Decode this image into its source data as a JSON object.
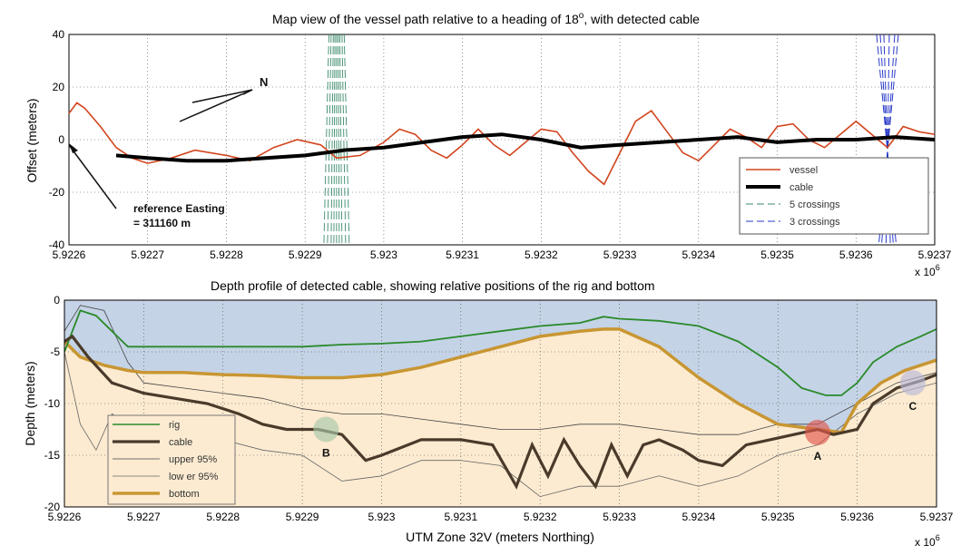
{
  "chart_data": [
    {
      "type": "line",
      "title": "Map view of the vessel path relative to a heading of 18°, with detected cable",
      "title_main": "Map view of the vessel path relative to a heading of 18",
      "title_deg": "o",
      "title_tail": ", with detected cable",
      "ylabel": "Offset (meters)",
      "xlim": [
        5.9226,
        5.9237
      ],
      "ylim": [
        -40,
        40
      ],
      "x_ticks": [
        "5.9226",
        "5.9227",
        "5.9228",
        "5.9229",
        "5.923",
        "5.9231",
        "5.9232",
        "5.9233",
        "5.9234",
        "5.9235",
        "5.9236",
        "5.9237"
      ],
      "y_ticks": [
        "40",
        "20",
        "0",
        "-20",
        "-40"
      ],
      "x_exponent_label": "x 10",
      "x_exponent": "6",
      "grid": true,
      "legend": {
        "placement": "bottom-right",
        "entries": [
          "vessel",
          "cable",
          "5 crossings",
          "3 crossings"
        ]
      },
      "annotations": {
        "north": "N",
        "ref_line1": "reference Easting",
        "ref_line2": "= 311160 m"
      },
      "colors": {
        "vessel": "#d2451e",
        "cable": "#000000",
        "crossings5": "#3a8a6a",
        "crossings3": "#2a3ac8"
      },
      "series": [
        {
          "name": "vessel",
          "x": [
            5.9226,
            5.92261,
            5.92262,
            5.92264,
            5.92266,
            5.92268,
            5.9227,
            5.92273,
            5.92276,
            5.9228,
            5.92283,
            5.92286,
            5.92289,
            5.92292,
            5.92294,
            5.92297,
            5.923,
            5.92302,
            5.92304,
            5.92306,
            5.92308,
            5.9231,
            5.92312,
            5.92314,
            5.92316,
            5.92318,
            5.9232,
            5.92322,
            5.92324,
            5.92326,
            5.92328,
            5.9233,
            5.92332,
            5.92334,
            5.92336,
            5.92338,
            5.9234,
            5.92342,
            5.92344,
            5.92346,
            5.92348,
            5.9235,
            5.92352,
            5.92354,
            5.92356,
            5.92358,
            5.9236,
            5.92362,
            5.92364,
            5.92366,
            5.92368,
            5.9237
          ],
          "y": [
            10,
            14,
            12,
            5,
            -3,
            -7,
            -9,
            -7,
            -4,
            -6,
            -8,
            -3,
            0,
            -2,
            -7,
            -6,
            -1,
            4,
            2,
            -4,
            -7,
            -2,
            4,
            -2,
            -6,
            -1,
            4,
            3,
            -5,
            -12,
            -17,
            -5,
            7,
            11,
            3,
            -5,
            -8,
            -2,
            4,
            1,
            -3,
            5,
            6,
            0,
            -3,
            2,
            7,
            2,
            -3,
            5,
            3,
            2
          ]
        },
        {
          "name": "cable",
          "x": [
            5.92266,
            5.9227,
            5.92275,
            5.9228,
            5.92285,
            5.9229,
            5.92295,
            5.923,
            5.92305,
            5.9231,
            5.92315,
            5.9232,
            5.92325,
            5.9233,
            5.92335,
            5.9234,
            5.92345,
            5.9235,
            5.92355,
            5.9236,
            5.92365,
            5.9237
          ],
          "y": [
            -6,
            -7,
            -8,
            -8,
            -7,
            -6,
            -4,
            -3,
            -1,
            1,
            2,
            0,
            -3,
            -2,
            -1,
            0,
            1,
            -1,
            0,
            0,
            1,
            0
          ]
        },
        {
          "name": "5 crossings",
          "type": "dashed-lines",
          "x_center": 5.92294,
          "y_range": [
            -40,
            40
          ]
        },
        {
          "name": "3 crossings",
          "type": "dashed-lines",
          "x_center": 5.92364,
          "y_range": [
            -40,
            40
          ]
        }
      ]
    },
    {
      "type": "line",
      "title": "Depth profile of detected cable, showing relative positions of the rig and bottom",
      "xlabel": "UTM Zone 32V (meters Northing)",
      "ylabel": "Depth (meters)",
      "xlim": [
        5.9226,
        5.9237
      ],
      "ylim": [
        -20,
        0
      ],
      "x_ticks": [
        "5.9226",
        "5.9227",
        "5.9228",
        "5.9229",
        "5.923",
        "5.9231",
        "5.9232",
        "5.9233",
        "5.9234",
        "5.9235",
        "5.9236",
        "5.9237"
      ],
      "y_ticks": [
        "0",
        "-5",
        "-10",
        "-15",
        "-20"
      ],
      "x_exponent_label": "x 10",
      "x_exponent": "6",
      "grid": true,
      "legend": {
        "placement": "bottom-left",
        "entries": [
          "rig",
          "cable",
          "upper 95%",
          "low er 95%",
          "bottom"
        ]
      },
      "markers": [
        {
          "label": "A",
          "x": 5.92355,
          "y": -12.8,
          "color": "#e0574f"
        },
        {
          "label": "B",
          "x": 5.92293,
          "y": -12.5,
          "color": "#a8c8a8"
        },
        {
          "label": "C",
          "x": 5.92367,
          "y": -8.0,
          "color": "#b8b8d8"
        }
      ],
      "colors": {
        "rig": "#2a8a2a",
        "cable": "#4a3a2a",
        "upper": "#444444",
        "lower": "#666666",
        "bottom": "#c89632",
        "water": "#c4d3e6",
        "seabed": "#fcebd1"
      },
      "series": [
        {
          "name": "rig",
          "x": [
            5.9226,
            5.92262,
            5.92264,
            5.92266,
            5.92268,
            5.9227,
            5.92275,
            5.9228,
            5.92285,
            5.9229,
            5.92295,
            5.923,
            5.92305,
            5.9231,
            5.92315,
            5.9232,
            5.92325,
            5.92328,
            5.9233,
            5.92335,
            5.9234,
            5.92345,
            5.9235,
            5.92353,
            5.92356,
            5.92358,
            5.9236,
            5.92362,
            5.92365,
            5.92368,
            5.9237
          ],
          "y": [
            -5,
            -1,
            -1.5,
            -3,
            -4.5,
            -4.5,
            -4.5,
            -4.5,
            -4.5,
            -4.5,
            -4.3,
            -4.2,
            -4,
            -3.5,
            -3,
            -2.5,
            -2.2,
            -1.6,
            -1.8,
            -2,
            -2.5,
            -4,
            -6.5,
            -8.5,
            -9.2,
            -9.2,
            -8,
            -6,
            -4.5,
            -3.5,
            -2.8
          ]
        },
        {
          "name": "cable",
          "x": [
            5.9226,
            5.92261,
            5.92263,
            5.92266,
            5.9227,
            5.92274,
            5.92278,
            5.92282,
            5.92285,
            5.92288,
            5.9229,
            5.92292,
            5.92295,
            5.92298,
            5.923,
            5.92305,
            5.9231,
            5.92314,
            5.92317,
            5.92319,
            5.92321,
            5.92323,
            5.92325,
            5.92327,
            5.92329,
            5.92331,
            5.92333,
            5.92335,
            5.92338,
            5.9234,
            5.92343,
            5.92346,
            5.92349,
            5.92352,
            5.92355,
            5.92357,
            5.9236,
            5.92362,
            5.92365,
            5.92368,
            5.9237
          ],
          "y": [
            -4,
            -3.5,
            -5.5,
            -8,
            -9,
            -9.5,
            -10,
            -11,
            -12,
            -12.5,
            -12.5,
            -12.5,
            -13,
            -15.5,
            -15,
            -13.5,
            -13.5,
            -14,
            -18,
            -14,
            -17,
            -13.5,
            -16,
            -18,
            -14,
            -17,
            -14,
            -13.5,
            -14.5,
            -15.5,
            -16,
            -14,
            -13.5,
            -13,
            -12.5,
            -13,
            -12.5,
            -10,
            -8.5,
            -7.8,
            -7.2
          ]
        },
        {
          "name": "upper 95%",
          "x": [
            5.9226,
            5.92262,
            5.92265,
            5.92268,
            5.9227,
            5.92275,
            5.9228,
            5.92285,
            5.9229,
            5.92295,
            5.923,
            5.92305,
            5.9231,
            5.92315,
            5.9232,
            5.92325,
            5.9233,
            5.92335,
            5.9234,
            5.92345,
            5.9235,
            5.92355,
            5.9236,
            5.92365,
            5.9237
          ],
          "y": [
            -3,
            -0.5,
            -1,
            -6,
            -8,
            -8.5,
            -9,
            -9.5,
            -10.5,
            -11,
            -11,
            -11.5,
            -12,
            -12.5,
            -12.5,
            -12,
            -12,
            -12.5,
            -13,
            -13,
            -12,
            -12,
            -10,
            -8,
            -7
          ]
        },
        {
          "name": "low er 95%",
          "x": [
            5.9226,
            5.92262,
            5.92264,
            5.92266,
            5.92268,
            5.9227,
            5.92275,
            5.9228,
            5.92285,
            5.9229,
            5.92295,
            5.923,
            5.92305,
            5.9231,
            5.92315,
            5.9232,
            5.92325,
            5.9233,
            5.92335,
            5.9234,
            5.92345,
            5.9235,
            5.92355,
            5.9236,
            5.92365,
            5.9237
          ],
          "y": [
            -5,
            -12,
            -14.5,
            -11,
            -12,
            -12.5,
            -13,
            -13.5,
            -14.5,
            -15,
            -17.5,
            -17,
            -15.5,
            -15.5,
            -16,
            -19,
            -18,
            -18,
            -17,
            -18,
            -17,
            -15,
            -14,
            -11,
            -9,
            -8
          ]
        },
        {
          "name": "bottom",
          "x": [
            5.9226,
            5.92262,
            5.92265,
            5.92268,
            5.9227,
            5.92275,
            5.9228,
            5.92285,
            5.9229,
            5.92295,
            5.923,
            5.92305,
            5.9231,
            5.92315,
            5.9232,
            5.92325,
            5.92328,
            5.9233,
            5.92335,
            5.9234,
            5.92345,
            5.9235,
            5.92355,
            5.92358,
            5.9236,
            5.92363,
            5.92366,
            5.9237
          ],
          "y": [
            -4,
            -5.5,
            -6.3,
            -6.8,
            -7,
            -7,
            -7.2,
            -7.3,
            -7.5,
            -7.5,
            -7.2,
            -6.5,
            -5.5,
            -4.5,
            -3.5,
            -3,
            -2.8,
            -2.8,
            -4.5,
            -7.5,
            -10,
            -12,
            -12.5,
            -12.8,
            -10,
            -8,
            -6.8,
            -5.8
          ]
        }
      ]
    }
  ]
}
